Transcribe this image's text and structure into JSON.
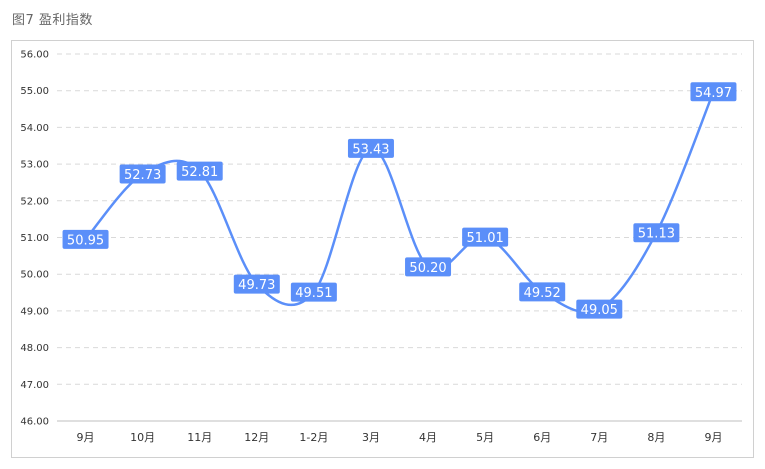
{
  "figure_title": "图7 盈利指数",
  "chart_data": {
    "type": "line",
    "categories": [
      "9月",
      "10月",
      "11月",
      "12月",
      "1-2月",
      "3月",
      "4月",
      "5月",
      "6月",
      "7月",
      "8月",
      "9月"
    ],
    "series": [
      {
        "values": [
          50.95,
          52.73,
          52.81,
          49.73,
          49.51,
          53.43,
          50.2,
          51.01,
          49.52,
          49.05,
          51.13,
          54.97
        ]
      }
    ],
    "value_labels": [
      "50.95",
      "52.73",
      "52.81",
      "49.73",
      "49.51",
      "53.43",
      "50.20",
      "51.01",
      "49.52",
      "49.05",
      "51.13",
      "54.97"
    ],
    "y_ticks": [
      "46.00",
      "47.00",
      "48.00",
      "49.00",
      "50.00",
      "51.00",
      "52.00",
      "53.00",
      "54.00",
      "55.00",
      "56.00"
    ],
    "ylim": [
      46,
      56
    ],
    "grid": true,
    "colors": {
      "line": "#5b8ff9",
      "label_bg": "#5b8ff9",
      "label_text": "#ffffff",
      "grid": "#d9d9d9",
      "axis_text": "#333333"
    }
  }
}
